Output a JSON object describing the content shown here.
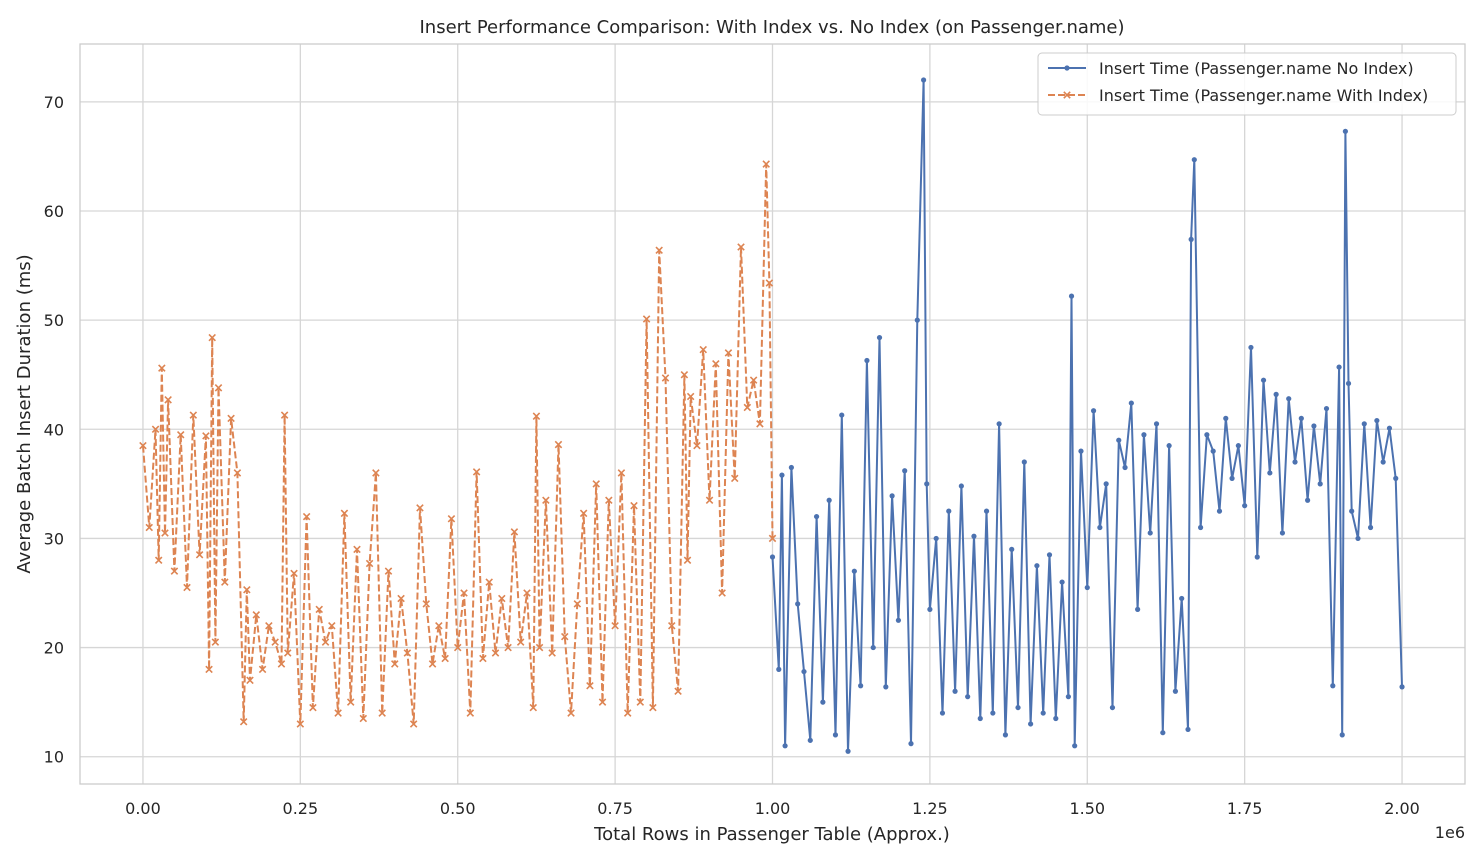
{
  "chart_data": {
    "type": "line",
    "title": "Insert Performance Comparison: With Index vs. No Index (on Passenger.name)",
    "xlabel": "Total Rows in Passenger Table (Approx.)",
    "ylabel": "Average Batch Insert Duration (ms)",
    "x_offset_label": "1e6",
    "xlim": [
      -0.1,
      2.1
    ],
    "ylim": [
      7.5,
      75.3
    ],
    "x_ticks": [
      0,
      0.25,
      0.5,
      0.75,
      1.0,
      1.25,
      1.5,
      1.75,
      2.0
    ],
    "x_tick_labels": [
      "0.00",
      "0.25",
      "0.50",
      "0.75",
      "1.00",
      "1.25",
      "1.50",
      "1.75",
      "2.00"
    ],
    "y_ticks": [
      10,
      20,
      30,
      40,
      50,
      60,
      70
    ],
    "y_tick_labels": [
      "10",
      "20",
      "30",
      "40",
      "50",
      "60",
      "70"
    ],
    "grid": true,
    "legend_position": "top-right",
    "series": [
      {
        "name": "Insert Time (Passenger.name No Index)",
        "color": "#4c72b0",
        "line_style": "solid",
        "marker": "dot",
        "x": [
          1.0,
          1.01,
          1.015,
          1.02,
          1.03,
          1.04,
          1.05,
          1.06,
          1.07,
          1.08,
          1.09,
          1.1,
          1.11,
          1.12,
          1.13,
          1.14,
          1.15,
          1.16,
          1.17,
          1.18,
          1.19,
          1.2,
          1.21,
          1.22,
          1.23,
          1.24,
          1.245,
          1.25,
          1.26,
          1.27,
          1.28,
          1.29,
          1.3,
          1.31,
          1.32,
          1.33,
          1.34,
          1.35,
          1.36,
          1.37,
          1.38,
          1.39,
          1.4,
          1.41,
          1.42,
          1.43,
          1.44,
          1.45,
          1.46,
          1.47,
          1.475,
          1.48,
          1.49,
          1.5,
          1.51,
          1.52,
          1.53,
          1.54,
          1.55,
          1.56,
          1.57,
          1.58,
          1.59,
          1.6,
          1.61,
          1.62,
          1.63,
          1.64,
          1.65,
          1.66,
          1.665,
          1.67,
          1.68,
          1.69,
          1.7,
          1.71,
          1.72,
          1.73,
          1.74,
          1.75,
          1.76,
          1.77,
          1.78,
          1.79,
          1.8,
          1.81,
          1.82,
          1.83,
          1.84,
          1.85,
          1.86,
          1.87,
          1.88,
          1.89,
          1.9,
          1.905,
          1.91,
          1.915,
          1.92,
          1.93,
          1.94,
          1.95,
          1.96,
          1.97,
          1.98,
          1.99,
          2.0
        ],
        "y": [
          28.3,
          18.0,
          35.8,
          11.0,
          36.5,
          24.0,
          17.8,
          11.5,
          32.0,
          15.0,
          33.5,
          12.0,
          41.3,
          10.5,
          27.0,
          16.5,
          46.3,
          20.0,
          48.4,
          16.4,
          33.9,
          22.5,
          36.2,
          11.2,
          50.0,
          72.0,
          35.0,
          23.5,
          30.0,
          14.0,
          32.5,
          16.0,
          34.8,
          15.5,
          30.2,
          13.5,
          32.5,
          14.0,
          40.5,
          12.0,
          29.0,
          14.5,
          37.0,
          13.0,
          27.5,
          14.0,
          28.5,
          13.5,
          26.0,
          15.5,
          52.2,
          11.0,
          38.0,
          25.5,
          41.7,
          31.0,
          35.0,
          14.5,
          39.0,
          36.5,
          42.4,
          23.5,
          39.5,
          30.5,
          40.5,
          12.2,
          38.5,
          16.0,
          24.5,
          12.5,
          57.4,
          64.7,
          31.0,
          39.5,
          38.0,
          32.5,
          41.0,
          35.5,
          38.5,
          33.0,
          47.5,
          28.3,
          44.5,
          36.0,
          43.2,
          30.5,
          42.8,
          37.0,
          41.0,
          33.5,
          40.3,
          35.0,
          41.9,
          16.5,
          45.7,
          12.0,
          67.3,
          44.2,
          32.5,
          30.0,
          40.5,
          31.0,
          40.8,
          37.0,
          40.1,
          35.5,
          16.4
        ]
      },
      {
        "name": "Insert Time (Passenger.name With Index)",
        "color": "#dd8452",
        "line_style": "dashed",
        "marker": "x",
        "x": [
          0.0,
          0.01,
          0.02,
          0.025,
          0.03,
          0.035,
          0.04,
          0.05,
          0.06,
          0.07,
          0.08,
          0.09,
          0.1,
          0.105,
          0.11,
          0.115,
          0.12,
          0.13,
          0.14,
          0.15,
          0.16,
          0.165,
          0.17,
          0.18,
          0.19,
          0.2,
          0.21,
          0.22,
          0.225,
          0.23,
          0.24,
          0.25,
          0.26,
          0.27,
          0.28,
          0.29,
          0.3,
          0.31,
          0.32,
          0.33,
          0.34,
          0.35,
          0.36,
          0.37,
          0.38,
          0.39,
          0.4,
          0.41,
          0.42,
          0.43,
          0.44,
          0.45,
          0.46,
          0.47,
          0.48,
          0.49,
          0.5,
          0.51,
          0.52,
          0.53,
          0.54,
          0.55,
          0.56,
          0.57,
          0.58,
          0.59,
          0.6,
          0.61,
          0.62,
          0.625,
          0.63,
          0.64,
          0.65,
          0.66,
          0.67,
          0.68,
          0.69,
          0.7,
          0.71,
          0.72,
          0.73,
          0.74,
          0.75,
          0.76,
          0.77,
          0.78,
          0.79,
          0.8,
          0.81,
          0.82,
          0.83,
          0.84,
          0.85,
          0.86,
          0.865,
          0.87,
          0.88,
          0.89,
          0.9,
          0.91,
          0.92,
          0.93,
          0.94,
          0.95,
          0.96,
          0.97,
          0.98,
          0.99,
          0.995,
          1.0
        ],
        "y": [
          38.5,
          31.0,
          40.0,
          28.0,
          45.6,
          30.5,
          42.7,
          27.0,
          39.5,
          25.5,
          41.3,
          28.5,
          39.4,
          18.0,
          48.4,
          20.5,
          43.8,
          26.0,
          41.0,
          36.0,
          13.2,
          25.3,
          17.0,
          23.0,
          18.0,
          22.0,
          20.5,
          18.5,
          41.3,
          19.5,
          26.8,
          13.0,
          32.0,
          14.5,
          23.5,
          20.5,
          22.0,
          14.0,
          32.3,
          15.0,
          29.0,
          13.5,
          27.7,
          36.0,
          14.0,
          27.0,
          18.5,
          24.5,
          19.5,
          13.0,
          32.8,
          24.0,
          18.5,
          22.0,
          19.0,
          31.8,
          20.0,
          25.0,
          14.0,
          36.1,
          19.0,
          26.0,
          19.5,
          24.5,
          20.0,
          30.6,
          20.5,
          25.0,
          14.5,
          41.2,
          20.0,
          33.5,
          19.5,
          38.6,
          21.0,
          14.0,
          24.0,
          32.3,
          16.5,
          35.0,
          15.0,
          33.5,
          22.0,
          36.0,
          14.0,
          33.0,
          15.0,
          50.1,
          14.5,
          56.4,
          44.7,
          22.0,
          16.0,
          45.0,
          28.0,
          43.0,
          38.5,
          47.3,
          33.5,
          46.0,
          25.0,
          47.0,
          35.5,
          56.7,
          42.0,
          44.5,
          40.5,
          64.3,
          53.4,
          30.0
        ]
      }
    ]
  }
}
